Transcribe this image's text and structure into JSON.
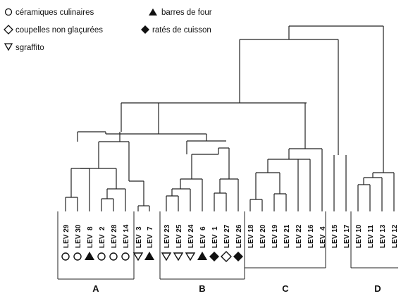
{
  "legend": {
    "items": [
      {
        "symbol": "circle-open",
        "label": "céramiques culinaires"
      },
      {
        "symbol": "triangle-up-filled",
        "label": "barres de four"
      },
      {
        "symbol": "diamond-open",
        "label": "coupelles non glaçurées"
      },
      {
        "symbol": "diamond-filled",
        "label": "ratés de cuisson"
      },
      {
        "symbol": "triangle-down-open",
        "label": "sgraffito"
      }
    ]
  },
  "leaves": [
    {
      "label": "LEV 29",
      "symbol": "circle-open"
    },
    {
      "label": "LEV 30",
      "symbol": "circle-open"
    },
    {
      "label": "LEV  8",
      "symbol": "triangle-up-filled"
    },
    {
      "label": "LEV  2",
      "symbol": "circle-open"
    },
    {
      "label": "LEV 28",
      "symbol": "circle-open"
    },
    {
      "label": "LEV 14",
      "symbol": "circle-open"
    },
    {
      "label": "LEV  3",
      "symbol": "triangle-down-open"
    },
    {
      "label": "LEV  7",
      "symbol": "triangle-up-filled"
    },
    {
      "label": "LEV 23",
      "symbol": "triangle-down-open"
    },
    {
      "label": "LEV 25",
      "symbol": "triangle-down-open"
    },
    {
      "label": "LEV 24",
      "symbol": "triangle-down-open"
    },
    {
      "label": "LEV  6",
      "symbol": "triangle-up-filled"
    },
    {
      "label": "LEV  1",
      "symbol": "diamond-filled"
    },
    {
      "label": "LEV 27",
      "symbol": "diamond-open"
    },
    {
      "label": "LEV 26",
      "symbol": "diamond-filled"
    },
    {
      "label": "LEV 18",
      "symbol": ""
    },
    {
      "label": "LEV 20",
      "symbol": ""
    },
    {
      "label": "LEV 19",
      "symbol": ""
    },
    {
      "label": "LEV 21",
      "symbol": ""
    },
    {
      "label": "LEV 22",
      "symbol": ""
    },
    {
      "label": "LEV 16",
      "symbol": ""
    },
    {
      "label": "LEV  4",
      "symbol": ""
    },
    {
      "label": "LEV 15",
      "symbol": ""
    },
    {
      "label": "LEV 17",
      "symbol": ""
    },
    {
      "label": "LEV 10",
      "symbol": ""
    },
    {
      "label": "LEV 11",
      "symbol": ""
    },
    {
      "label": "LEV 13",
      "symbol": ""
    },
    {
      "label": "LEV 12",
      "symbol": ""
    }
  ],
  "groups": [
    "A",
    "B",
    "C",
    "D"
  ]
}
